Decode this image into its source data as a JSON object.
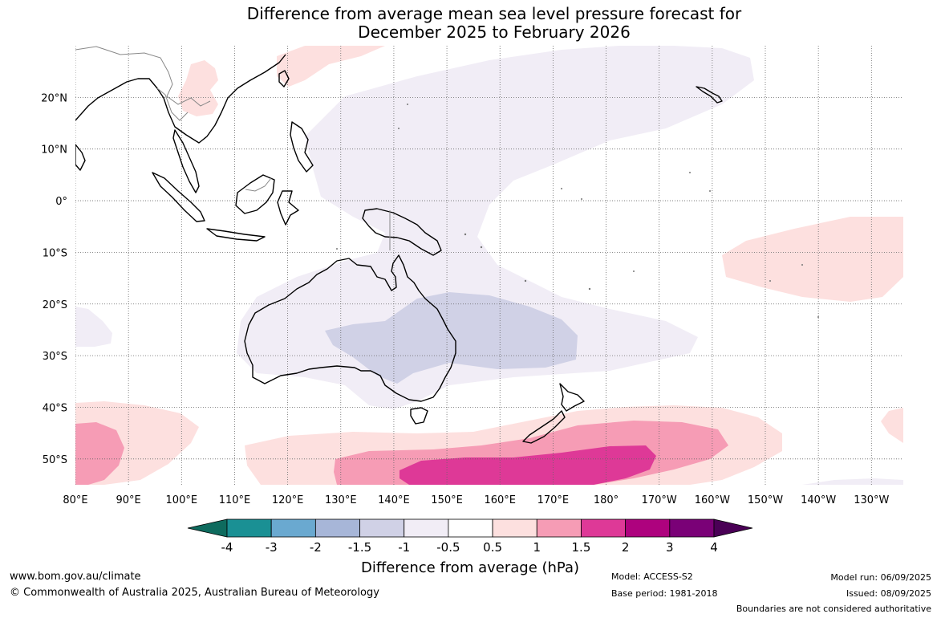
{
  "title": {
    "line1": "Difference from average mean sea level pressure forecast for",
    "line2": "December 2025 to February 2026"
  },
  "map": {
    "lon_labels": [
      "80°E",
      "90°E",
      "100°E",
      "110°E",
      "120°E",
      "130°E",
      "140°E",
      "150°E",
      "160°E",
      "170°E",
      "180°",
      "170°W",
      "160°W",
      "150°W",
      "140°W",
      "130°W"
    ],
    "lat_labels": [
      "20°N",
      "10°N",
      "0°",
      "10°S",
      "20°S",
      "30°S",
      "40°S",
      "50°S"
    ],
    "extent": {
      "lon_min": 80,
      "lon_max": 236,
      "lat_min": -55,
      "lat_max": 30
    },
    "grid": "dotted",
    "land_outline_color": "#000000",
    "border_color": "#888888"
  },
  "colorbar": {
    "title": "Difference from average (hPa)",
    "ticks": [
      "-4",
      "-3",
      "-2",
      "-1.5",
      "-1",
      "-0.5",
      "0.5",
      "1",
      "1.5",
      "2",
      "3",
      "4"
    ],
    "colors": [
      "#0e6b5e",
      "#1a9094",
      "#6aa9d0",
      "#a7b6d8",
      "#d0d1e6",
      "#f1edf6",
      "#ffffff",
      "#fde0df",
      "#f69cb5",
      "#de3997",
      "#ae027e",
      "#7a0177",
      "#4a0056"
    ],
    "extend": "both"
  },
  "footer": {
    "url": "www.bom.gov.au/climate",
    "copyright": "© Commonwealth of Australia 2025, Australian Bureau of Meteorology",
    "model": "Model: ACCESS-S2",
    "base_period": "Base period: 1981-2018",
    "model_run": "Model run: 06/09/2025",
    "issued": "Issued: 08/09/2025",
    "boundaries_note": "Boundaries are not considered authoritative"
  }
}
